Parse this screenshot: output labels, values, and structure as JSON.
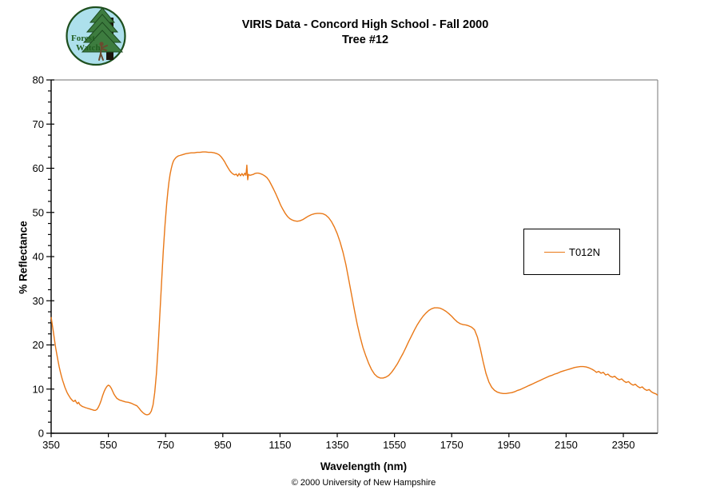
{
  "header": {
    "logo": {
      "line1": "Forest",
      "line2": "Watch"
    },
    "title_line1": "VIRIS Data - Concord High School - Fall 2000",
    "title_line2": "Tree #12"
  },
  "footer": {
    "copyright": "© 2000 University of New Hampshire"
  },
  "colors": {
    "series": "#E97817",
    "axis": "#000000",
    "plot_border": "#8C8C8C",
    "logo_bg": "#ADE0EC",
    "logo_ring": "#1E4F1E",
    "logo_foliage": "#3D7C3F",
    "logo_foliage_dark": "#1D4B20",
    "logo_trunk": "#1C140C",
    "logo_person": "#6B4A2F",
    "logo_text": "#215E21"
  },
  "chart_data": {
    "type": "line",
    "title": "VIRIS Data - Concord High School - Fall 2000 — Tree #12",
    "xlabel": "Wavelength (nm)",
    "ylabel": "% Reflectance",
    "xlim": [
      350,
      2470
    ],
    "ylim": [
      0,
      80
    ],
    "x_major_ticks": [
      350,
      550,
      750,
      950,
      1150,
      1350,
      1550,
      1750,
      1950,
      2150,
      2350
    ],
    "y_major_tick_step": 10,
    "y_minor_tick_step": 2.5,
    "grid": false,
    "legend_position": "right-middle",
    "series": [
      {
        "name": "T012N",
        "color": "#E97817",
        "points": [
          [
            350,
            26.3
          ],
          [
            354,
            24.6
          ],
          [
            358,
            22.8
          ],
          [
            362,
            21.0
          ],
          [
            366,
            19.3
          ],
          [
            370,
            17.8
          ],
          [
            374,
            16.4
          ],
          [
            378,
            15.1
          ],
          [
            382,
            13.9
          ],
          [
            386,
            12.9
          ],
          [
            390,
            12.0
          ],
          [
            394,
            11.2
          ],
          [
            398,
            10.4
          ],
          [
            402,
            9.8
          ],
          [
            406,
            9.2
          ],
          [
            410,
            8.7
          ],
          [
            414,
            8.3
          ],
          [
            418,
            7.9
          ],
          [
            422,
            7.6
          ],
          [
            426,
            7.3
          ],
          [
            430,
            7.2
          ],
          [
            434,
            7.5
          ],
          [
            438,
            7.0
          ],
          [
            442,
            6.7
          ],
          [
            446,
            7.0
          ],
          [
            450,
            6.5
          ],
          [
            454,
            6.3
          ],
          [
            458,
            6.1
          ],
          [
            462,
            6.0
          ],
          [
            466,
            5.9
          ],
          [
            470,
            5.8
          ],
          [
            475,
            5.7
          ],
          [
            480,
            5.6
          ],
          [
            485,
            5.5
          ],
          [
            490,
            5.4
          ],
          [
            495,
            5.3
          ],
          [
            500,
            5.2
          ],
          [
            505,
            5.2
          ],
          [
            510,
            5.4
          ],
          [
            515,
            5.9
          ],
          [
            520,
            6.6
          ],
          [
            525,
            7.5
          ],
          [
            530,
            8.5
          ],
          [
            535,
            9.4
          ],
          [
            540,
            10.1
          ],
          [
            545,
            10.6
          ],
          [
            550,
            10.9
          ],
          [
            555,
            10.7
          ],
          [
            560,
            10.2
          ],
          [
            565,
            9.5
          ],
          [
            570,
            8.8
          ],
          [
            575,
            8.3
          ],
          [
            580,
            7.9
          ],
          [
            585,
            7.7
          ],
          [
            590,
            7.5
          ],
          [
            595,
            7.4
          ],
          [
            600,
            7.3
          ],
          [
            610,
            7.1
          ],
          [
            620,
            7.0
          ],
          [
            630,
            6.8
          ],
          [
            640,
            6.5
          ],
          [
            650,
            6.2
          ],
          [
            658,
            5.6
          ],
          [
            664,
            5.1
          ],
          [
            670,
            4.7
          ],
          [
            676,
            4.4
          ],
          [
            682,
            4.2
          ],
          [
            688,
            4.2
          ],
          [
            694,
            4.4
          ],
          [
            700,
            5.0
          ],
          [
            706,
            6.4
          ],
          [
            712,
            9.2
          ],
          [
            718,
            13.6
          ],
          [
            724,
            19.6
          ],
          [
            730,
            26.8
          ],
          [
            736,
            34.2
          ],
          [
            742,
            41.2
          ],
          [
            748,
            47.2
          ],
          [
            754,
            52.0
          ],
          [
            758,
            54.8
          ],
          [
            762,
            57.0
          ],
          [
            766,
            58.7
          ],
          [
            770,
            60.0
          ],
          [
            774,
            61.0
          ],
          [
            778,
            61.7
          ],
          [
            782,
            62.1
          ],
          [
            786,
            62.4
          ],
          [
            790,
            62.6
          ],
          [
            795,
            62.8
          ],
          [
            800,
            62.9
          ],
          [
            810,
            63.1
          ],
          [
            820,
            63.3
          ],
          [
            830,
            63.4
          ],
          [
            840,
            63.5
          ],
          [
            850,
            63.5
          ],
          [
            860,
            63.6
          ],
          [
            870,
            63.6
          ],
          [
            880,
            63.7
          ],
          [
            890,
            63.7
          ],
          [
            900,
            63.6
          ],
          [
            910,
            63.6
          ],
          [
            920,
            63.5
          ],
          [
            930,
            63.3
          ],
          [
            938,
            63.0
          ],
          [
            944,
            62.6
          ],
          [
            950,
            62.1
          ],
          [
            956,
            61.5
          ],
          [
            962,
            60.8
          ],
          [
            968,
            60.1
          ],
          [
            974,
            59.5
          ],
          [
            980,
            59.0
          ],
          [
            986,
            58.7
          ],
          [
            992,
            58.5
          ],
          [
            997,
            58.7
          ],
          [
            1002,
            58.2
          ],
          [
            1007,
            58.8
          ],
          [
            1012,
            58.3
          ],
          [
            1017,
            58.8
          ],
          [
            1022,
            58.3
          ],
          [
            1027,
            58.9
          ],
          [
            1031,
            58.4
          ],
          [
            1034,
            60.7
          ],
          [
            1037,
            57.4
          ],
          [
            1040,
            58.6
          ],
          [
            1045,
            58.4
          ],
          [
            1050,
            58.5
          ],
          [
            1056,
            58.6
          ],
          [
            1062,
            58.8
          ],
          [
            1068,
            58.9
          ],
          [
            1074,
            58.9
          ],
          [
            1080,
            58.8
          ],
          [
            1088,
            58.6
          ],
          [
            1096,
            58.3
          ],
          [
            1104,
            57.9
          ],
          [
            1112,
            57.2
          ],
          [
            1120,
            56.2
          ],
          [
            1128,
            55.2
          ],
          [
            1136,
            54.1
          ],
          [
            1144,
            52.9
          ],
          [
            1152,
            51.7
          ],
          [
            1160,
            50.7
          ],
          [
            1168,
            49.8
          ],
          [
            1176,
            49.1
          ],
          [
            1184,
            48.6
          ],
          [
            1192,
            48.3
          ],
          [
            1200,
            48.1
          ],
          [
            1210,
            48.0
          ],
          [
            1220,
            48.1
          ],
          [
            1230,
            48.4
          ],
          [
            1240,
            48.8
          ],
          [
            1250,
            49.2
          ],
          [
            1260,
            49.5
          ],
          [
            1270,
            49.7
          ],
          [
            1280,
            49.8
          ],
          [
            1290,
            49.8
          ],
          [
            1300,
            49.7
          ],
          [
            1310,
            49.4
          ],
          [
            1320,
            48.8
          ],
          [
            1330,
            47.9
          ],
          [
            1340,
            46.7
          ],
          [
            1350,
            45.2
          ],
          [
            1360,
            43.3
          ],
          [
            1370,
            41.0
          ],
          [
            1380,
            38.2
          ],
          [
            1390,
            34.9
          ],
          [
            1400,
            31.4
          ],
          [
            1410,
            27.9
          ],
          [
            1420,
            24.6
          ],
          [
            1430,
            21.8
          ],
          [
            1440,
            19.4
          ],
          [
            1450,
            17.5
          ],
          [
            1460,
            15.8
          ],
          [
            1470,
            14.4
          ],
          [
            1480,
            13.4
          ],
          [
            1490,
            12.8
          ],
          [
            1500,
            12.5
          ],
          [
            1510,
            12.5
          ],
          [
            1520,
            12.7
          ],
          [
            1530,
            13.1
          ],
          [
            1540,
            13.8
          ],
          [
            1550,
            14.7
          ],
          [
            1560,
            15.7
          ],
          [
            1570,
            16.9
          ],
          [
            1580,
            18.1
          ],
          [
            1590,
            19.4
          ],
          [
            1600,
            20.8
          ],
          [
            1610,
            22.1
          ],
          [
            1620,
            23.4
          ],
          [
            1630,
            24.6
          ],
          [
            1640,
            25.6
          ],
          [
            1650,
            26.5
          ],
          [
            1660,
            27.2
          ],
          [
            1670,
            27.8
          ],
          [
            1680,
            28.2
          ],
          [
            1690,
            28.4
          ],
          [
            1700,
            28.4
          ],
          [
            1710,
            28.3
          ],
          [
            1720,
            28.0
          ],
          [
            1730,
            27.6
          ],
          [
            1740,
            27.1
          ],
          [
            1750,
            26.5
          ],
          [
            1760,
            25.8
          ],
          [
            1770,
            25.2
          ],
          [
            1780,
            24.8
          ],
          [
            1790,
            24.6
          ],
          [
            1800,
            24.5
          ],
          [
            1810,
            24.3
          ],
          [
            1820,
            24.0
          ],
          [
            1830,
            23.4
          ],
          [
            1840,
            21.8
          ],
          [
            1850,
            19.2
          ],
          [
            1860,
            16.2
          ],
          [
            1870,
            13.5
          ],
          [
            1880,
            11.6
          ],
          [
            1890,
            10.4
          ],
          [
            1900,
            9.7
          ],
          [
            1910,
            9.3
          ],
          [
            1920,
            9.1
          ],
          [
            1930,
            9.0
          ],
          [
            1940,
            9.0
          ],
          [
            1950,
            9.1
          ],
          [
            1960,
            9.2
          ],
          [
            1970,
            9.4
          ],
          [
            1980,
            9.7
          ],
          [
            1990,
            9.9
          ],
          [
            2000,
            10.2
          ],
          [
            2010,
            10.5
          ],
          [
            2020,
            10.8
          ],
          [
            2030,
            11.1
          ],
          [
            2040,
            11.4
          ],
          [
            2050,
            11.7
          ],
          [
            2060,
            12.0
          ],
          [
            2070,
            12.3
          ],
          [
            2080,
            12.6
          ],
          [
            2090,
            12.9
          ],
          [
            2100,
            13.1
          ],
          [
            2110,
            13.4
          ],
          [
            2120,
            13.6
          ],
          [
            2130,
            13.9
          ],
          [
            2140,
            14.1
          ],
          [
            2150,
            14.3
          ],
          [
            2160,
            14.5
          ],
          [
            2170,
            14.7
          ],
          [
            2180,
            14.9
          ],
          [
            2190,
            15.0
          ],
          [
            2200,
            15.1
          ],
          [
            2210,
            15.1
          ],
          [
            2220,
            15.0
          ],
          [
            2230,
            14.8
          ],
          [
            2240,
            14.5
          ],
          [
            2248,
            14.2
          ],
          [
            2256,
            13.8
          ],
          [
            2264,
            14.0
          ],
          [
            2272,
            13.6
          ],
          [
            2280,
            13.8
          ],
          [
            2288,
            13.2
          ],
          [
            2296,
            13.4
          ],
          [
            2304,
            12.9
          ],
          [
            2312,
            12.7
          ],
          [
            2320,
            12.9
          ],
          [
            2328,
            12.4
          ],
          [
            2336,
            12.1
          ],
          [
            2344,
            12.3
          ],
          [
            2352,
            11.8
          ],
          [
            2360,
            11.5
          ],
          [
            2368,
            11.7
          ],
          [
            2376,
            11.2
          ],
          [
            2384,
            10.9
          ],
          [
            2392,
            11.1
          ],
          [
            2400,
            10.6
          ],
          [
            2408,
            10.3
          ],
          [
            2416,
            10.5
          ],
          [
            2424,
            10.0
          ],
          [
            2432,
            9.7
          ],
          [
            2440,
            9.9
          ],
          [
            2448,
            9.4
          ],
          [
            2456,
            9.1
          ],
          [
            2464,
            8.9
          ],
          [
            2470,
            8.6
          ]
        ]
      }
    ]
  }
}
